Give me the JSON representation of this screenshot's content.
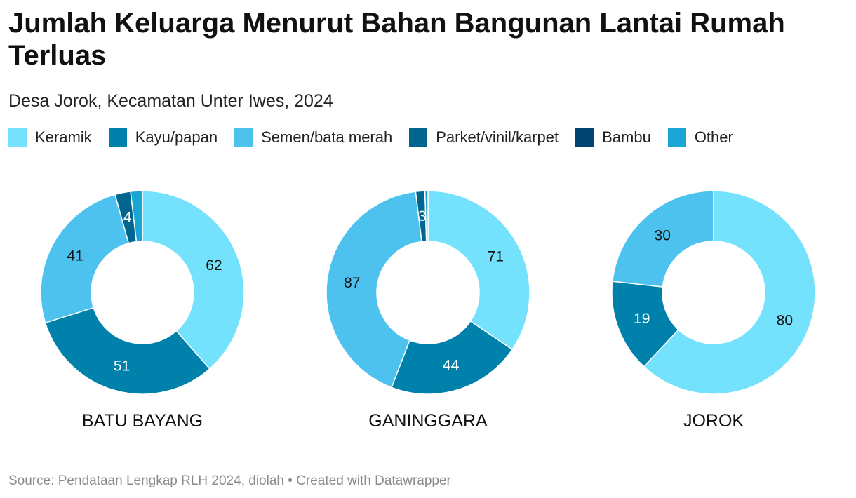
{
  "header": {
    "title": "Jumlah Keluarga Menurut Bahan Bangunan Lantai Rumah Terluas",
    "subtitle": "Desa Jorok, Kecamatan Unter Iwes, 2024"
  },
  "legend": [
    {
      "label": "Keramik",
      "color": "#75e2fd"
    },
    {
      "label": "Kayu/papan",
      "color": "#0081ab"
    },
    {
      "label": "Semen/bata merah",
      "color": "#4dc2ee"
    },
    {
      "label": "Parket/vinil/karpet",
      "color": "#006690"
    },
    {
      "label": "Bambu",
      "color": "#004570"
    },
    {
      "label": "Other",
      "color": "#1aa6d4"
    }
  ],
  "chart_data": {
    "type": "pie",
    "variant": "donut",
    "categories": [
      "Keramik",
      "Kayu/papan",
      "Semen/bata merah",
      "Parket/vinil/karpet",
      "Bambu",
      "Other"
    ],
    "charts": [
      {
        "name": "BATU BAYANG",
        "values": [
          62,
          51,
          41,
          4,
          0,
          3
        ],
        "labels": [
          "62",
          "51",
          "41",
          "4",
          "",
          ""
        ]
      },
      {
        "name": "GANINGGARA",
        "values": [
          71,
          44,
          87,
          3,
          0,
          1
        ],
        "labels": [
          "71",
          "44",
          "87",
          "3",
          "",
          ""
        ]
      },
      {
        "name": "JOROK",
        "values": [
          80,
          19,
          30,
          0,
          0,
          0
        ],
        "labels": [
          "80",
          "19",
          "30",
          "",
          "",
          ""
        ]
      }
    ]
  },
  "footer": {
    "source": "Source: Pendataan Lengkap RLH 2024, diolah • Created with Datawrapper"
  }
}
